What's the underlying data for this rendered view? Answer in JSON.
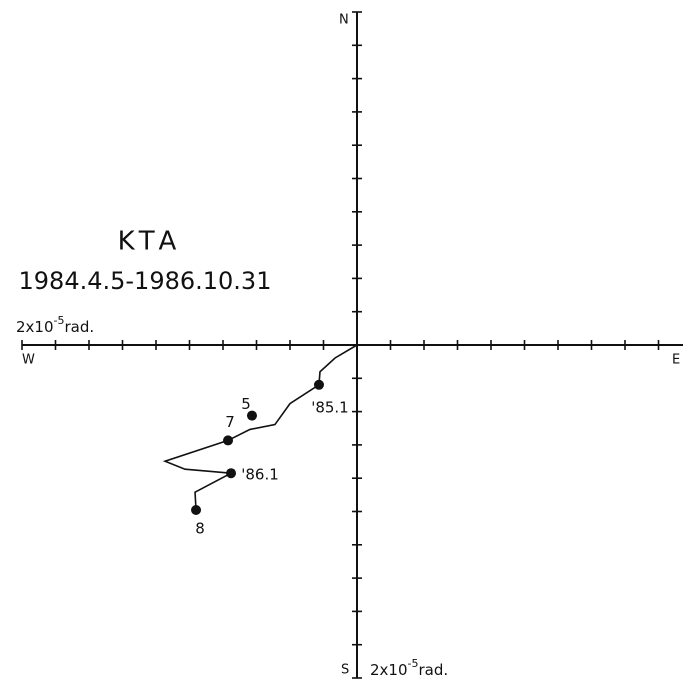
{
  "chart_data": {
    "type": "scatter",
    "title": "KTA",
    "subtitle": "1984.4.5-1986.10.31",
    "directions": {
      "north": "N",
      "south": "S",
      "west": "W",
      "east": "E"
    },
    "scale_label": {
      "base": "2x10",
      "exponent": "-5",
      "unit": "rad."
    },
    "xlim": [
      -2,
      2
    ],
    "ylim": [
      -2,
      2
    ],
    "xticks": [
      -2,
      -1.8,
      -1.6,
      -1.4,
      -1.2,
      -1,
      -0.8,
      -0.6,
      -0.4,
      -0.2,
      0,
      0.2,
      0.4,
      0.6,
      0.8,
      1,
      1.2,
      1.4,
      1.6,
      1.8,
      2
    ],
    "yticks": [
      -2,
      -1.8,
      -1.6,
      -1.4,
      -1.2,
      -1,
      -0.8,
      -0.6,
      -0.4,
      -0.2,
      0,
      0.2,
      0.4,
      0.6,
      0.8,
      1,
      1.2,
      1.4,
      1.6,
      1.8,
      2
    ],
    "trace": {
      "color": "#111",
      "x": [
        0,
        -0.131,
        -0.221,
        -0.227,
        -0.4,
        -0.49,
        -0.639,
        -0.77,
        -1.146,
        -1.027,
        -0.752,
        -0.967,
        -0.961
      ],
      "y": [
        0,
        -0.078,
        -0.161,
        -0.239,
        -0.352,
        -0.478,
        -0.507,
        -0.573,
        -0.698,
        -0.746,
        -0.77,
        -0.884,
        -0.991
      ]
    },
    "points": {
      "color": "#111",
      "labels": [
        "'85.1",
        "5",
        "7",
        "'86.1",
        "8"
      ],
      "x": [
        -0.227,
        -0.627,
        -0.77,
        -0.752,
        -0.961
      ],
      "y": [
        -0.239,
        -0.424,
        -0.573,
        -0.77,
        -0.991
      ]
    }
  }
}
